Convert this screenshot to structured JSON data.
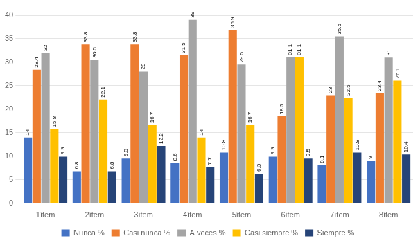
{
  "chart_data": {
    "type": "bar",
    "categories": [
      "1ítem",
      "2ítem",
      "3ítem",
      "4ítem",
      "5ítem",
      "6ítem",
      "7ítem",
      "8ítem"
    ],
    "series": [
      {
        "name": "Nunca %",
        "color": "#4472C4",
        "values": [
          14.0,
          6.8,
          9.5,
          8.6,
          10.8,
          9.9,
          8.1,
          9.0
        ]
      },
      {
        "name": "Casi nunca %",
        "color": "#ED7D31",
        "values": [
          28.4,
          33.8,
          33.8,
          31.5,
          36.9,
          18.5,
          23.0,
          23.4
        ]
      },
      {
        "name": "A veces %",
        "color": "#A5A5A5",
        "values": [
          32.0,
          30.5,
          28.0,
          39.0,
          29.5,
          31.1,
          35.5,
          31.0
        ]
      },
      {
        "name": "Casi siempre %",
        "color": "#FFC000",
        "values": [
          15.8,
          22.1,
          16.7,
          14.0,
          16.7,
          31.1,
          22.5,
          26.1
        ]
      },
      {
        "name": "Siempre %",
        "color": "#264478",
        "values": [
          9.9,
          6.8,
          12.2,
          7.7,
          6.3,
          9.5,
          10.8,
          10.4
        ]
      }
    ],
    "ylim": [
      0,
      40
    ],
    "yticks": [
      0,
      5,
      10,
      15,
      20,
      25,
      30,
      35,
      40
    ],
    "grid": true,
    "legend": "bottom",
    "data_labels": true
  }
}
